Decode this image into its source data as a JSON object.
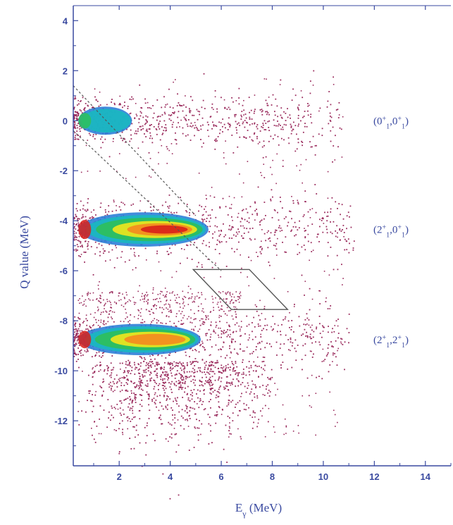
{
  "chart_data": {
    "type": "heatmap",
    "title": "",
    "xlabel": "Eγ (MeV)",
    "ylabel": "Q value (MeV)",
    "xlim": [
      0.2,
      15
    ],
    "ylim": [
      -13.8,
      4.6
    ],
    "x_ticks": [
      2,
      4,
      6,
      8,
      10,
      12,
      14
    ],
    "y_ticks": [
      4,
      2,
      0,
      -2,
      -4,
      -6,
      -8,
      -10,
      -12
    ],
    "grid": false,
    "colorscale": [
      "#9b2d5e",
      "#2e7fd8",
      "#19b8c0",
      "#2fbf5a",
      "#f2e51c",
      "#f58a1f",
      "#d8201a"
    ],
    "bands": [
      {
        "label_main": "(0",
        "label_parts": [
          "+",
          "1",
          ",0",
          "+",
          "1",
          ")"
        ],
        "q_center": 0.0,
        "q_width": 0.45,
        "hot_x": [
          0.4,
          2.5
        ],
        "peak_intensity": 0.55,
        "x_extent": 10.5
      },
      {
        "label_main": "(2",
        "label_parts": [
          "+",
          "1",
          ",0",
          "+",
          "1",
          ")"
        ],
        "q_center": -4.35,
        "q_width": 0.55,
        "hot_x": [
          0.4,
          5.5
        ],
        "peak_intensity": 1.0,
        "x_extent": 11.0
      },
      {
        "label_main": "(2",
        "label_parts": [
          "+",
          "1",
          ",2",
          "+",
          "1",
          ")"
        ],
        "q_center": -8.75,
        "q_width": 0.5,
        "hot_x": [
          0.4,
          5.2
        ],
        "peak_intensity": 0.85,
        "x_extent": 10.8
      }
    ],
    "dashed_lines": [
      {
        "x": [
          0.2,
          5.0
        ],
        "y": [
          1.4,
          -3.8
        ]
      },
      {
        "x": [
          0.2,
          6.0
        ],
        "y": [
          -0.4,
          -6.0
        ]
      }
    ],
    "gate_polygon": {
      "x": [
        4.9,
        7.1,
        8.6,
        6.4
      ],
      "y": [
        -5.95,
        -5.95,
        -7.55,
        -7.55
      ]
    },
    "colors": {
      "axis": "#3a4aa0",
      "text": "#3a4aa0",
      "dashed": "#555555",
      "gate": "#555555"
    }
  }
}
